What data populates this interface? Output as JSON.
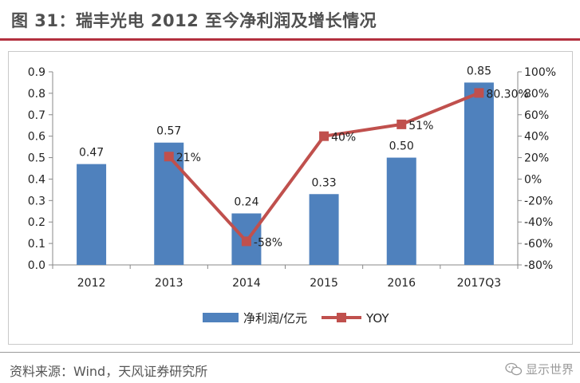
{
  "figure": {
    "title": "图 31：瑞丰光电 2012 至今净利润及增长情况",
    "source": "资料来源：Wind，天风证券研究所",
    "watermark": "显示世界"
  },
  "colors": {
    "bar": "#4f81bd",
    "line": "#c0504d",
    "title_rule": "#b3303f"
  },
  "icons": {
    "watermark": "wechat-icon"
  },
  "chart_data": {
    "type": "bar",
    "categories": [
      "2012",
      "2013",
      "2014",
      "2015",
      "2016",
      "2017Q3"
    ],
    "series": [
      {
        "name": "净利润/亿元",
        "type": "bar",
        "axis": "left",
        "values": [
          0.47,
          0.57,
          0.24,
          0.33,
          0.5,
          0.85
        ],
        "labels": [
          "0.47",
          "0.57",
          "0.24",
          "0.33",
          "0.50",
          "0.85"
        ]
      },
      {
        "name": "YOY",
        "type": "line",
        "axis": "right",
        "values": [
          null,
          21,
          -58,
          40,
          51,
          80.3
        ],
        "labels": [
          "",
          "21%",
          "-58%",
          "40%",
          "51%",
          "80.30%"
        ]
      }
    ],
    "y_left": {
      "ylim": [
        0,
        0.9
      ],
      "ticks": [
        "0.0",
        "0.1",
        "0.2",
        "0.3",
        "0.4",
        "0.5",
        "0.6",
        "0.7",
        "0.8",
        "0.9"
      ]
    },
    "y_right": {
      "ylim": [
        -80,
        100
      ],
      "ticks": [
        "-80%",
        "-60%",
        "-40%",
        "-20%",
        "0%",
        "20%",
        "40%",
        "60%",
        "80%",
        "100%"
      ]
    },
    "legend": "bottom",
    "grid": false
  }
}
